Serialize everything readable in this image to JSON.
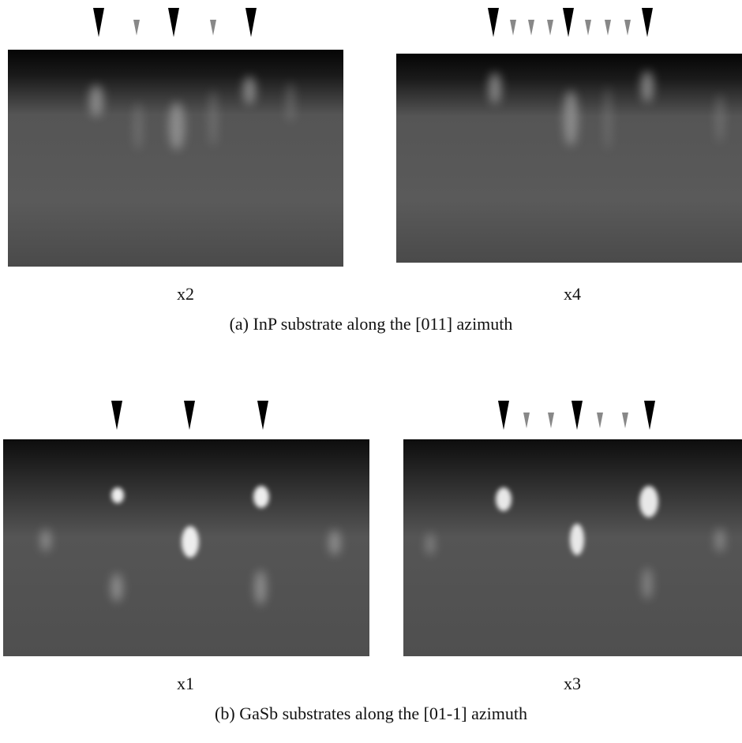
{
  "figure": {
    "rows": [
      {
        "caption": "(a) InP substrate along the [011] azimuth",
        "panels": [
          {
            "label": "x2"
          },
          {
            "label": "x4"
          }
        ]
      },
      {
        "caption": "(b) GaSb substrates along the [01-1] azimuth",
        "panels": [
          {
            "label": "x1"
          },
          {
            "label": "x3"
          }
        ]
      }
    ]
  }
}
